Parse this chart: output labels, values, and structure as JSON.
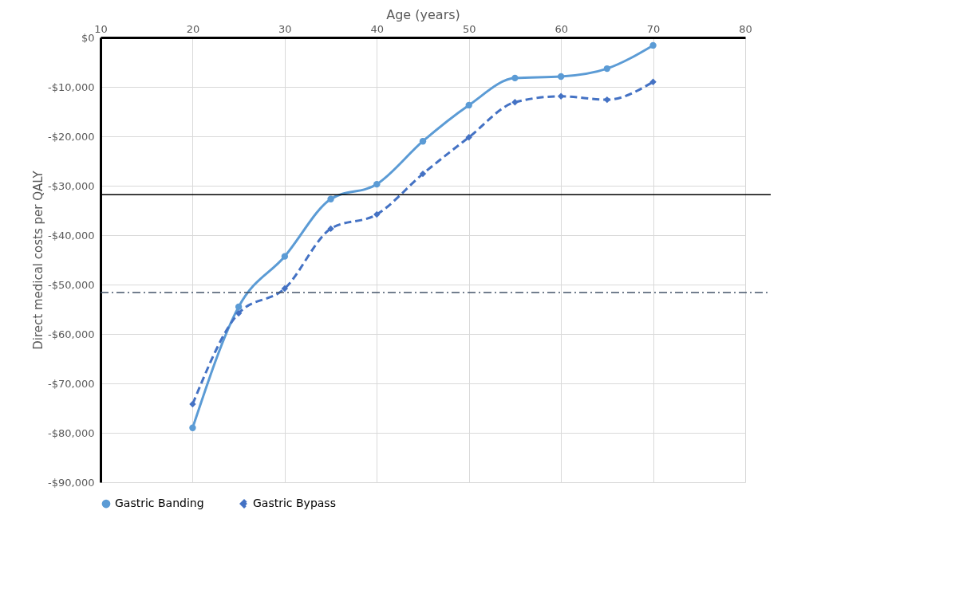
{
  "chart_data": {
    "type": "line",
    "xlabel": "Age (years)",
    "ylabel": "Direct medical costs per QALY",
    "x": [
      20,
      25,
      30,
      35,
      40,
      45,
      50,
      55,
      60,
      65,
      70
    ],
    "series": [
      {
        "name": "Gastric Banding",
        "color": "#5b9bd5",
        "marker": "circle",
        "line_style": "solid",
        "values": [
          -79000,
          -54500,
          -44300,
          -32700,
          -29700,
          -21000,
          -13700,
          -8200,
          -7900,
          -6300,
          -1600
        ]
      },
      {
        "name": "Gastric Bypass",
        "color": "#4472c4",
        "marker": "diamond",
        "line_style": "dashed",
        "values": [
          -74200,
          -55800,
          -50800,
          -38700,
          -35800,
          -27600,
          -20200,
          -13100,
          -11900,
          -12600,
          -9000
        ]
      }
    ],
    "xlim": [
      10,
      80
    ],
    "xticks": [
      10,
      20,
      30,
      40,
      50,
      60,
      70,
      80
    ],
    "ylim": [
      -90000,
      0
    ],
    "yticks": [
      {
        "value": 0,
        "label": "$0"
      },
      {
        "value": -10000,
        "label": "-$10,000"
      },
      {
        "value": -20000,
        "label": "-$20,000"
      },
      {
        "value": -30000,
        "label": "-$30,000"
      },
      {
        "value": -40000,
        "label": "-$40,000"
      },
      {
        "value": -50000,
        "label": "-$50,000"
      },
      {
        "value": -60000,
        "label": "-$60,000"
      },
      {
        "value": -70000,
        "label": "-$70,000"
      },
      {
        "value": -80000,
        "label": "-$80,000"
      },
      {
        "value": -90000,
        "label": "-$90,000"
      }
    ],
    "ref_lines": [
      {
        "axis": "y",
        "value": -31800,
        "color": "#000000",
        "line_style": "solid"
      },
      {
        "axis": "y",
        "value": -51600,
        "color": "#44546a",
        "line_style": "dashdot"
      }
    ],
    "grid": true,
    "legend": "bottom"
  }
}
